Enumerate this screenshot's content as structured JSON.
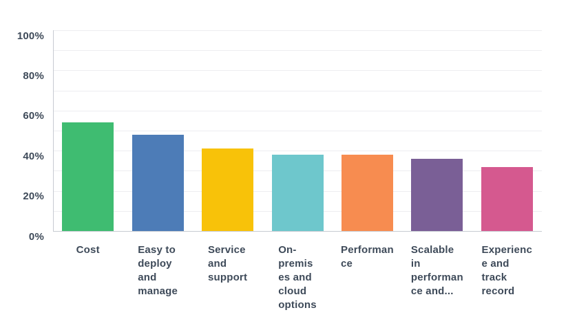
{
  "chart_data": {
    "type": "bar",
    "title": "",
    "xlabel": "",
    "ylabel": "",
    "unit": "%",
    "categories": [
      "Cost",
      "Easy to deploy and manage",
      "Service and support",
      "On-premises and cloud options",
      "Performance",
      "Scalable in performance and...",
      "Experience and track record"
    ],
    "category_display": [
      "Cost",
      "Easy to\ndeploy\nand\nmanage",
      "Service\nand\nsupport",
      "On-\npremis\nes and\ncloud\noptions",
      "Performan\nce",
      "Scalable\nin\nperforman\nce and...",
      "Experienc\ne and\ntrack\nrecord"
    ],
    "values": [
      54,
      48,
      41,
      38,
      38,
      36,
      32
    ],
    "bar_colors": [
      "#3fbc71",
      "#4d7cb7",
      "#f8c209",
      "#6ec7cc",
      "#f78c50",
      "#7a5f96",
      "#d5598f"
    ],
    "ylim": [
      0,
      100
    ],
    "gridline_step": 10,
    "y_tick_step_labeled": 20,
    "y_tick_labels": [
      "0%",
      "20%",
      "40%",
      "60%",
      "80%",
      "100%"
    ],
    "grid": true,
    "legend": "none"
  },
  "style": {
    "background": "#ffffff",
    "axis_label_color": "#3e4a59",
    "gridline_color": "#ededf0",
    "axis_line_color": "#c6cad1"
  }
}
